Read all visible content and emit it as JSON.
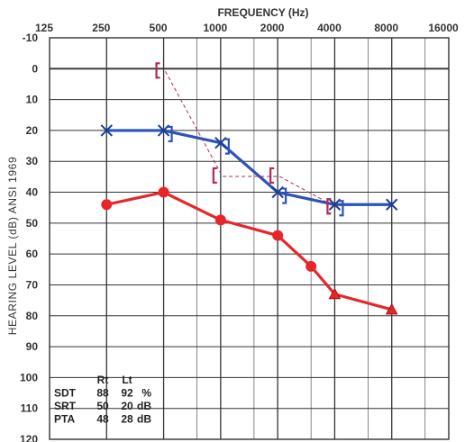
{
  "chart_data": {
    "type": "line",
    "title": "",
    "xlabel": "FREQUENCY (Hz)",
    "ylabel": "HEARING LEVEL (dB) ANSI 1969",
    "x_ticks": [
      "125",
      "250",
      "500",
      "1000",
      "2000",
      "4000",
      "8000",
      "16000"
    ],
    "y_ticks": [
      "-10",
      "0",
      "10",
      "20",
      "30",
      "40",
      "50",
      "60",
      "70",
      "80",
      "90",
      "100",
      "110",
      "120"
    ],
    "ylim": [
      -10,
      120
    ],
    "y_inverted": true,
    "x_scale": "log2",
    "grid": true,
    "series": [
      {
        "name": "",
        "color": "#2b54b8",
        "marker": "x",
        "points": [
          {
            "x": 250,
            "y": 20
          },
          {
            "x": 500,
            "y": 20
          },
          {
            "x": 1000,
            "y": 24
          },
          {
            "x": 2000,
            "y": 40
          },
          {
            "x": 4000,
            "y": 44
          },
          {
            "x": 8000,
            "y": 44
          }
        ]
      },
      {
        "name": "",
        "color": "#e8262a",
        "marker": "circle",
        "points": [
          {
            "x": 250,
            "y": 44
          },
          {
            "x": 500,
            "y": 40
          },
          {
            "x": 1000,
            "y": 49
          },
          {
            "x": 2000,
            "y": 54
          },
          {
            "x": 3000,
            "y": 64
          },
          {
            "x": 4000,
            "y": 73
          },
          {
            "x": 8000,
            "y": 78
          }
        ]
      },
      {
        "name": "",
        "color": "#2b54b8",
        "marker": "bracket-right",
        "points": [
          {
            "x": 500,
            "y": 20
          },
          {
            "x": 1000,
            "y": 24
          },
          {
            "x": 2000,
            "y": 40
          },
          {
            "x": 4000,
            "y": 44
          }
        ]
      },
      {
        "name": "",
        "color": "#b02a50",
        "marker": "bracket-left",
        "dashed": true,
        "points": [
          {
            "x": 500,
            "y": 0
          },
          {
            "x": 1000,
            "y": 34
          },
          {
            "x": 2000,
            "y": 34
          },
          {
            "x": 4000,
            "y": 44
          }
        ]
      }
    ],
    "table": {
      "header": [
        "",
        "Rt",
        "Lt",
        ""
      ],
      "rows": [
        [
          "SDT",
          "88",
          "92",
          "%"
        ],
        [
          "SRT",
          "50",
          "20",
          "dB"
        ],
        [
          "PTA",
          "48",
          "28",
          "dB"
        ]
      ]
    }
  }
}
